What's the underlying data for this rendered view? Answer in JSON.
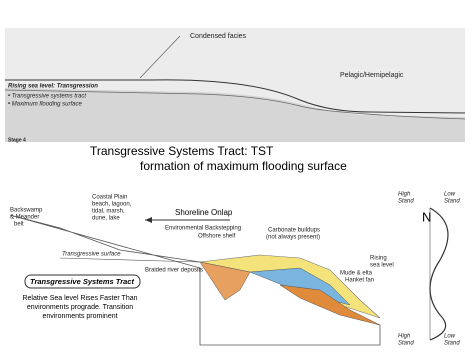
{
  "top_panel": {
    "condensed_label": "Condensed facies",
    "pelagic_label": "Pelagic/Hemipelagic",
    "legend_title": "Rising sea level: Transgression",
    "legend_items": [
      "• Transgressive systems tract",
      "• Maximum flooding surface"
    ],
    "stage": "Stage 4"
  },
  "caption": {
    "line1": "Transgressive Systems Tract: TST",
    "line2": "formation of maximum flooding surface"
  },
  "bottom_panel": {
    "backswamp": [
      "Backswamp",
      "& Meander",
      "belt"
    ],
    "coastal_plain": [
      "Coastal Plain",
      "beach, lagoon,",
      "tidal, marsh,",
      "dune, lake"
    ],
    "shoreline_onlap": "Shoreline Onlap",
    "backstepping": "Environmental Backstepping",
    "offshore": "Offshore shelf",
    "carbonate": [
      "Carbonate buildups",
      "(not always present)"
    ],
    "transgressive_surface": "Transgressive surface",
    "braided": "Braided river deposits",
    "rising": [
      "Rising",
      "sea level"
    ],
    "fan": [
      "Mude & elta",
      "Hanket fan"
    ],
    "box_title": "Transgressive Systems Tract",
    "description": [
      "Relative Sea level Rises Faster Than",
      "environments prograde. Transition",
      "environments prominent"
    ],
    "curve": {
      "high_top": [
        "High",
        "Stand"
      ],
      "low_top": [
        "Low",
        "Stand"
      ],
      "n": "N",
      "high_bottom": [
        "High",
        "Stand"
      ],
      "low_bottom": [
        "Low",
        "Stand"
      ]
    }
  }
}
